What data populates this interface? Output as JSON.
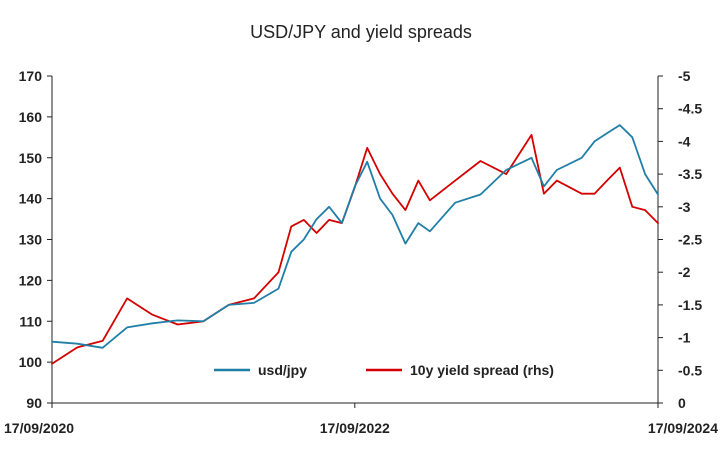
{
  "chart_data": {
    "type": "line",
    "title": "USD/JPY and yield spreads",
    "xlabel": "",
    "ylabel": "",
    "y2label": "",
    "x_tick_labels": [
      "17/09/2020",
      "17/09/2022",
      "17/09/2024"
    ],
    "x_range": [
      "17/09/2020",
      "17/09/2024"
    ],
    "ylim": [
      90,
      170
    ],
    "y_ticks": [
      170,
      160,
      150,
      140,
      130,
      120,
      110,
      100,
      90
    ],
    "y2lim": [
      0,
      -5
    ],
    "y2_ticks": [
      -5,
      -4.5,
      -4,
      -3.5,
      -3,
      -2.5,
      -2,
      -1.5,
      -1,
      -0.5,
      0
    ],
    "grid": false,
    "legend_position": "bottom-center",
    "series": [
      {
        "name": "usd/jpy",
        "axis": "left",
        "color": "#1f7fa6",
        "x": [
          "17/09/2020",
          "17/11/2020",
          "17/01/2021",
          "17/03/2021",
          "17/05/2021",
          "17/07/2021",
          "17/09/2021",
          "17/11/2021",
          "17/01/2022",
          "17/03/2022",
          "17/04/2022",
          "17/05/2022",
          "17/06/2022",
          "17/07/2022",
          "17/08/2022",
          "17/09/2022",
          "17/10/2022",
          "17/11/2022",
          "17/12/2022",
          "17/01/2023",
          "17/02/2023",
          "17/03/2023",
          "17/05/2023",
          "17/07/2023",
          "17/09/2023",
          "17/11/2023",
          "17/12/2023",
          "17/01/2024",
          "17/03/2024",
          "17/04/2024",
          "17/05/2024",
          "17/06/2024",
          "17/07/2024",
          "17/08/2024",
          "17/09/2024"
        ],
        "values": [
          105,
          104.5,
          103.5,
          108.5,
          109.5,
          110.2,
          110,
          114,
          114.5,
          118,
          127,
          130,
          135,
          138,
          134,
          143,
          149,
          140,
          136,
          129,
          134,
          132,
          139,
          141,
          147,
          150,
          143,
          147,
          150,
          154,
          156,
          158,
          155,
          146,
          141
        ]
      },
      {
        "name": "10y yield spread (rhs)",
        "axis": "right",
        "color": "#d40000",
        "x": [
          "17/09/2020",
          "17/11/2020",
          "17/01/2021",
          "17/03/2021",
          "17/05/2021",
          "17/07/2021",
          "17/09/2021",
          "17/11/2021",
          "17/01/2022",
          "17/03/2022",
          "17/04/2022",
          "17/05/2022",
          "17/06/2022",
          "17/07/2022",
          "17/08/2022",
          "17/09/2022",
          "17/10/2022",
          "17/11/2022",
          "17/12/2022",
          "17/01/2023",
          "17/02/2023",
          "17/03/2023",
          "17/05/2023",
          "17/07/2023",
          "17/09/2023",
          "17/11/2023",
          "17/12/2023",
          "17/01/2024",
          "17/03/2024",
          "17/04/2024",
          "17/05/2024",
          "17/06/2024",
          "17/07/2024",
          "17/08/2024",
          "17/09/2024"
        ],
        "values": [
          -0.6,
          -0.85,
          -0.95,
          -1.6,
          -1.35,
          -1.2,
          -1.25,
          -1.5,
          -1.6,
          -2.0,
          -2.7,
          -2.8,
          -2.6,
          -2.8,
          -2.75,
          -3.3,
          -3.9,
          -3.5,
          -3.2,
          -2.95,
          -3.4,
          -3.1,
          -3.4,
          -3.7,
          -3.5,
          -4.1,
          -3.2,
          -3.4,
          -3.2,
          -3.2,
          -3.4,
          -3.6,
          -3.0,
          -2.95,
          -2.75
        ]
      }
    ]
  }
}
